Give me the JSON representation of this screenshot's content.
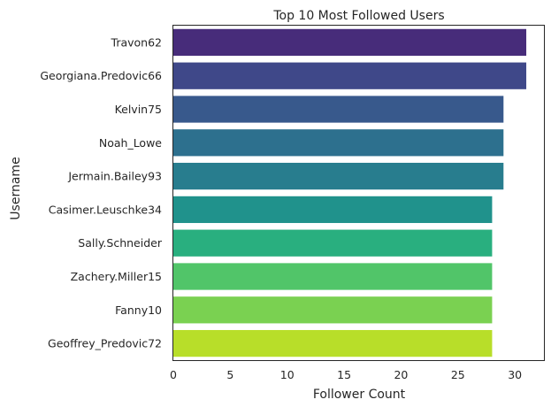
{
  "chart_data": {
    "type": "bar",
    "orientation": "horizontal",
    "title": "Top 10 Most Followed Users",
    "xlabel": "Follower Count",
    "ylabel": "Username",
    "categories": [
      "Travon62",
      "Georgiana.Predovic66",
      "Kelvin75",
      "Noah_Lowe",
      "Jermain.Bailey93",
      "Casimer.Leuschke34",
      "Sally.Schneider",
      "Zachery.Miller15",
      "Fanny10",
      "Geoffrey_Predovic72"
    ],
    "values": [
      31,
      31,
      29,
      29,
      29,
      28,
      28,
      28,
      28,
      28
    ],
    "xlim": [
      0,
      32.55
    ],
    "xticks": [
      0,
      5,
      10,
      15,
      20,
      25,
      30
    ],
    "grid": false,
    "palette": "viridis",
    "colors": [
      "#472c7a",
      "#3f4889",
      "#38598c",
      "#2d708e",
      "#287d8e",
      "#20928c",
      "#29af7f",
      "#51c569",
      "#7ad151",
      "#b8de29"
    ]
  }
}
